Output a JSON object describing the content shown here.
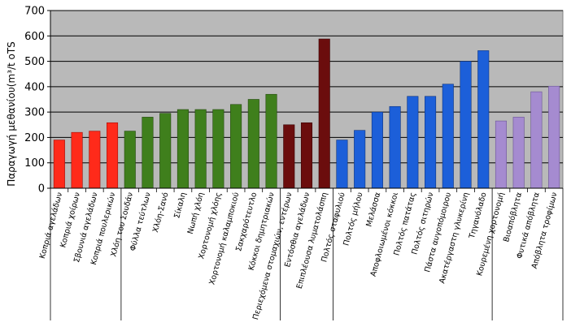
{
  "chart_data": {
    "type": "bar",
    "title": "",
    "xlabel": "",
    "ylabel": "Παραγωγή μεθανίου(m³/t oTS",
    "ylim": [
      0,
      700
    ],
    "yticks": [
      0,
      100,
      200,
      300,
      400,
      500,
      600,
      700
    ],
    "grid": true,
    "categories": [
      "Κοπριά αγελάδων",
      "Κοπριά χοίρων",
      "Σβουνιά αγελάδων",
      "Κοπριά πουλερικών",
      "Χλόη του Σουδάν",
      "Φύλλα τεύτλων",
      "Χλόη-Σανό",
      "Σίκαλη",
      "Νωπή χλόη",
      "Χορτονομή χλόης",
      "Χορτονομή καλαμποκιού",
      "Σακχαρότευτλο",
      "Κόκκοι δημητριακών",
      "Περιεχόμενα στομαχιών, εντέρων",
      "Εντόσθια αγελάδων",
      "Επιπλέουσα λυματολάσπη",
      "Πολτός σταφυλιού",
      "Πολτός μήλου",
      "Μελάσσα",
      "Αποφλοιωμένοι κόκκοι",
      "Πολτός πατάτας",
      "Πολτός σιτηρών",
      "Πάστα αυγοπόμοιρου",
      "Ακατέργαστη γλυκερίνη",
      "Τηγανόλαδο",
      "Κουρεμένη χορτονομή",
      "Βιοαπόβλητα",
      "Φυτικά απόβλητα",
      "Απόβλητα τροφίμων"
    ],
    "values": [
      190,
      220,
      225,
      258,
      225,
      280,
      295,
      310,
      310,
      310,
      330,
      350,
      370,
      250,
      258,
      588,
      190,
      228,
      300,
      322,
      362,
      362,
      410,
      500,
      542,
      265,
      280,
      380,
      402
    ],
    "groups": [
      {
        "start": 0,
        "end": 3,
        "color": "#ff2a1a",
        "edge": "#a01008"
      },
      {
        "start": 4,
        "end": 12,
        "color": "#3f7f1c",
        "edge": "#244a0e"
      },
      {
        "start": 13,
        "end": 15,
        "color": "#6b0d0d",
        "edge": "#3a0505"
      },
      {
        "start": 16,
        "end": 24,
        "color": "#1c5fd9",
        "edge": "#0d347f"
      },
      {
        "start": 25,
        "end": 28,
        "color": "#a58bd0",
        "edge": "#6a5495"
      }
    ],
    "plot_background": "#b9b9b9",
    "gridline_color": "#000000"
  }
}
